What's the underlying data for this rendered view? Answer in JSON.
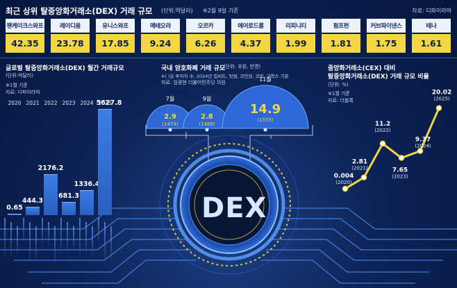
{
  "top": {
    "title": "최근 상위 탈중앙화거래소(DEX) 거래 규모",
    "unit": "(단위:억달러)",
    "date_note": "※2월 9일 기준",
    "source": "자료: 디파이라마",
    "exchanges": [
      {
        "name": "팬케이크스와프",
        "value": "42.35"
      },
      {
        "name": "레이디움",
        "value": "23.78"
      },
      {
        "name": "유니스와프",
        "value": "17.85"
      },
      {
        "name": "메테오라",
        "value": "9.24"
      },
      {
        "name": "오르카",
        "value": "6.26"
      },
      {
        "name": "에어로드롬",
        "value": "4.37"
      },
      {
        "name": "리피니티",
        "value": "1.99"
      },
      {
        "name": "펌프펀",
        "value": "1.81"
      },
      {
        "name": "커브파이낸스",
        "value": "1.75"
      },
      {
        "name": "테나",
        "value": "1.61"
      }
    ]
  },
  "left": {
    "title": "글로벌 탈중앙화거래소(DEX) 월간 거래규모",
    "unit": "(단위:억달러)",
    "note": "※1월 기준",
    "source": "자료: 디파이라마"
  },
  "middle": {
    "title": "국내 암호화폐 거래 규모",
    "unit": "(단위: 조원, 만명)",
    "note": "※( )은 투자자 수, 2024년 업비트, 빗썸, 코인원, 코빗, 고팍스 기준",
    "source": "자료: 임광현 더불어민주당 의원",
    "emblem_text": "DEX"
  },
  "right": {
    "title_line1": "중앙화거래소(CEX) 대비",
    "title_line2": "탈중앙화거래소(DEX) 거래 규모 비율",
    "unit": "(단위: %)",
    "note": "※1월 기준",
    "source": "자료: 더블록"
  },
  "colors": {
    "accent": "#f2d642",
    "bar": "#3c7de6",
    "background": "#0d2458"
  },
  "chart_data": [
    {
      "type": "bar",
      "title": "글로벌 탈중앙화거래소(DEX) 월간 거래규모",
      "categories": [
        "2020",
        "2021",
        "2022",
        "2023",
        "2024",
        "2025"
      ],
      "values": [
        0.65,
        444.3,
        2176.2,
        681.3,
        1336.4,
        5627.8
      ],
      "labels": [
        "0.65",
        "444.3",
        "2176.2",
        "681.3",
        "1336.4",
        "5627.8"
      ],
      "ylim": [
        0,
        5700
      ]
    },
    {
      "type": "bubble",
      "title": "국내 암호화폐 거래 규모",
      "categories": [
        "7월",
        "9월",
        "11월"
      ],
      "values": [
        2.9,
        2.8,
        14.9
      ],
      "labels": [
        "2.9",
        "2.8",
        "14.9"
      ],
      "investors": [
        "(1474)",
        "(1488)",
        "(1559)"
      ]
    },
    {
      "type": "line",
      "title": "중앙화거래소(CEX) 대비 탈중앙화거래소(DEX) 거래 규모 비율",
      "categories": [
        "2020",
        "2021",
        "2022",
        "2023",
        "2024",
        "2025"
      ],
      "values": [
        0.004,
        2.81,
        11.2,
        7.65,
        9.37,
        20.02
      ],
      "labels": [
        "0.004",
        "2.81",
        "11.2",
        "7.65",
        "9.37",
        "20.02"
      ],
      "years": [
        "(2020)",
        "(2021)",
        "(2022)",
        "(2023)",
        "(2024)",
        "(2025)"
      ],
      "ylim": [
        0,
        21
      ]
    }
  ]
}
